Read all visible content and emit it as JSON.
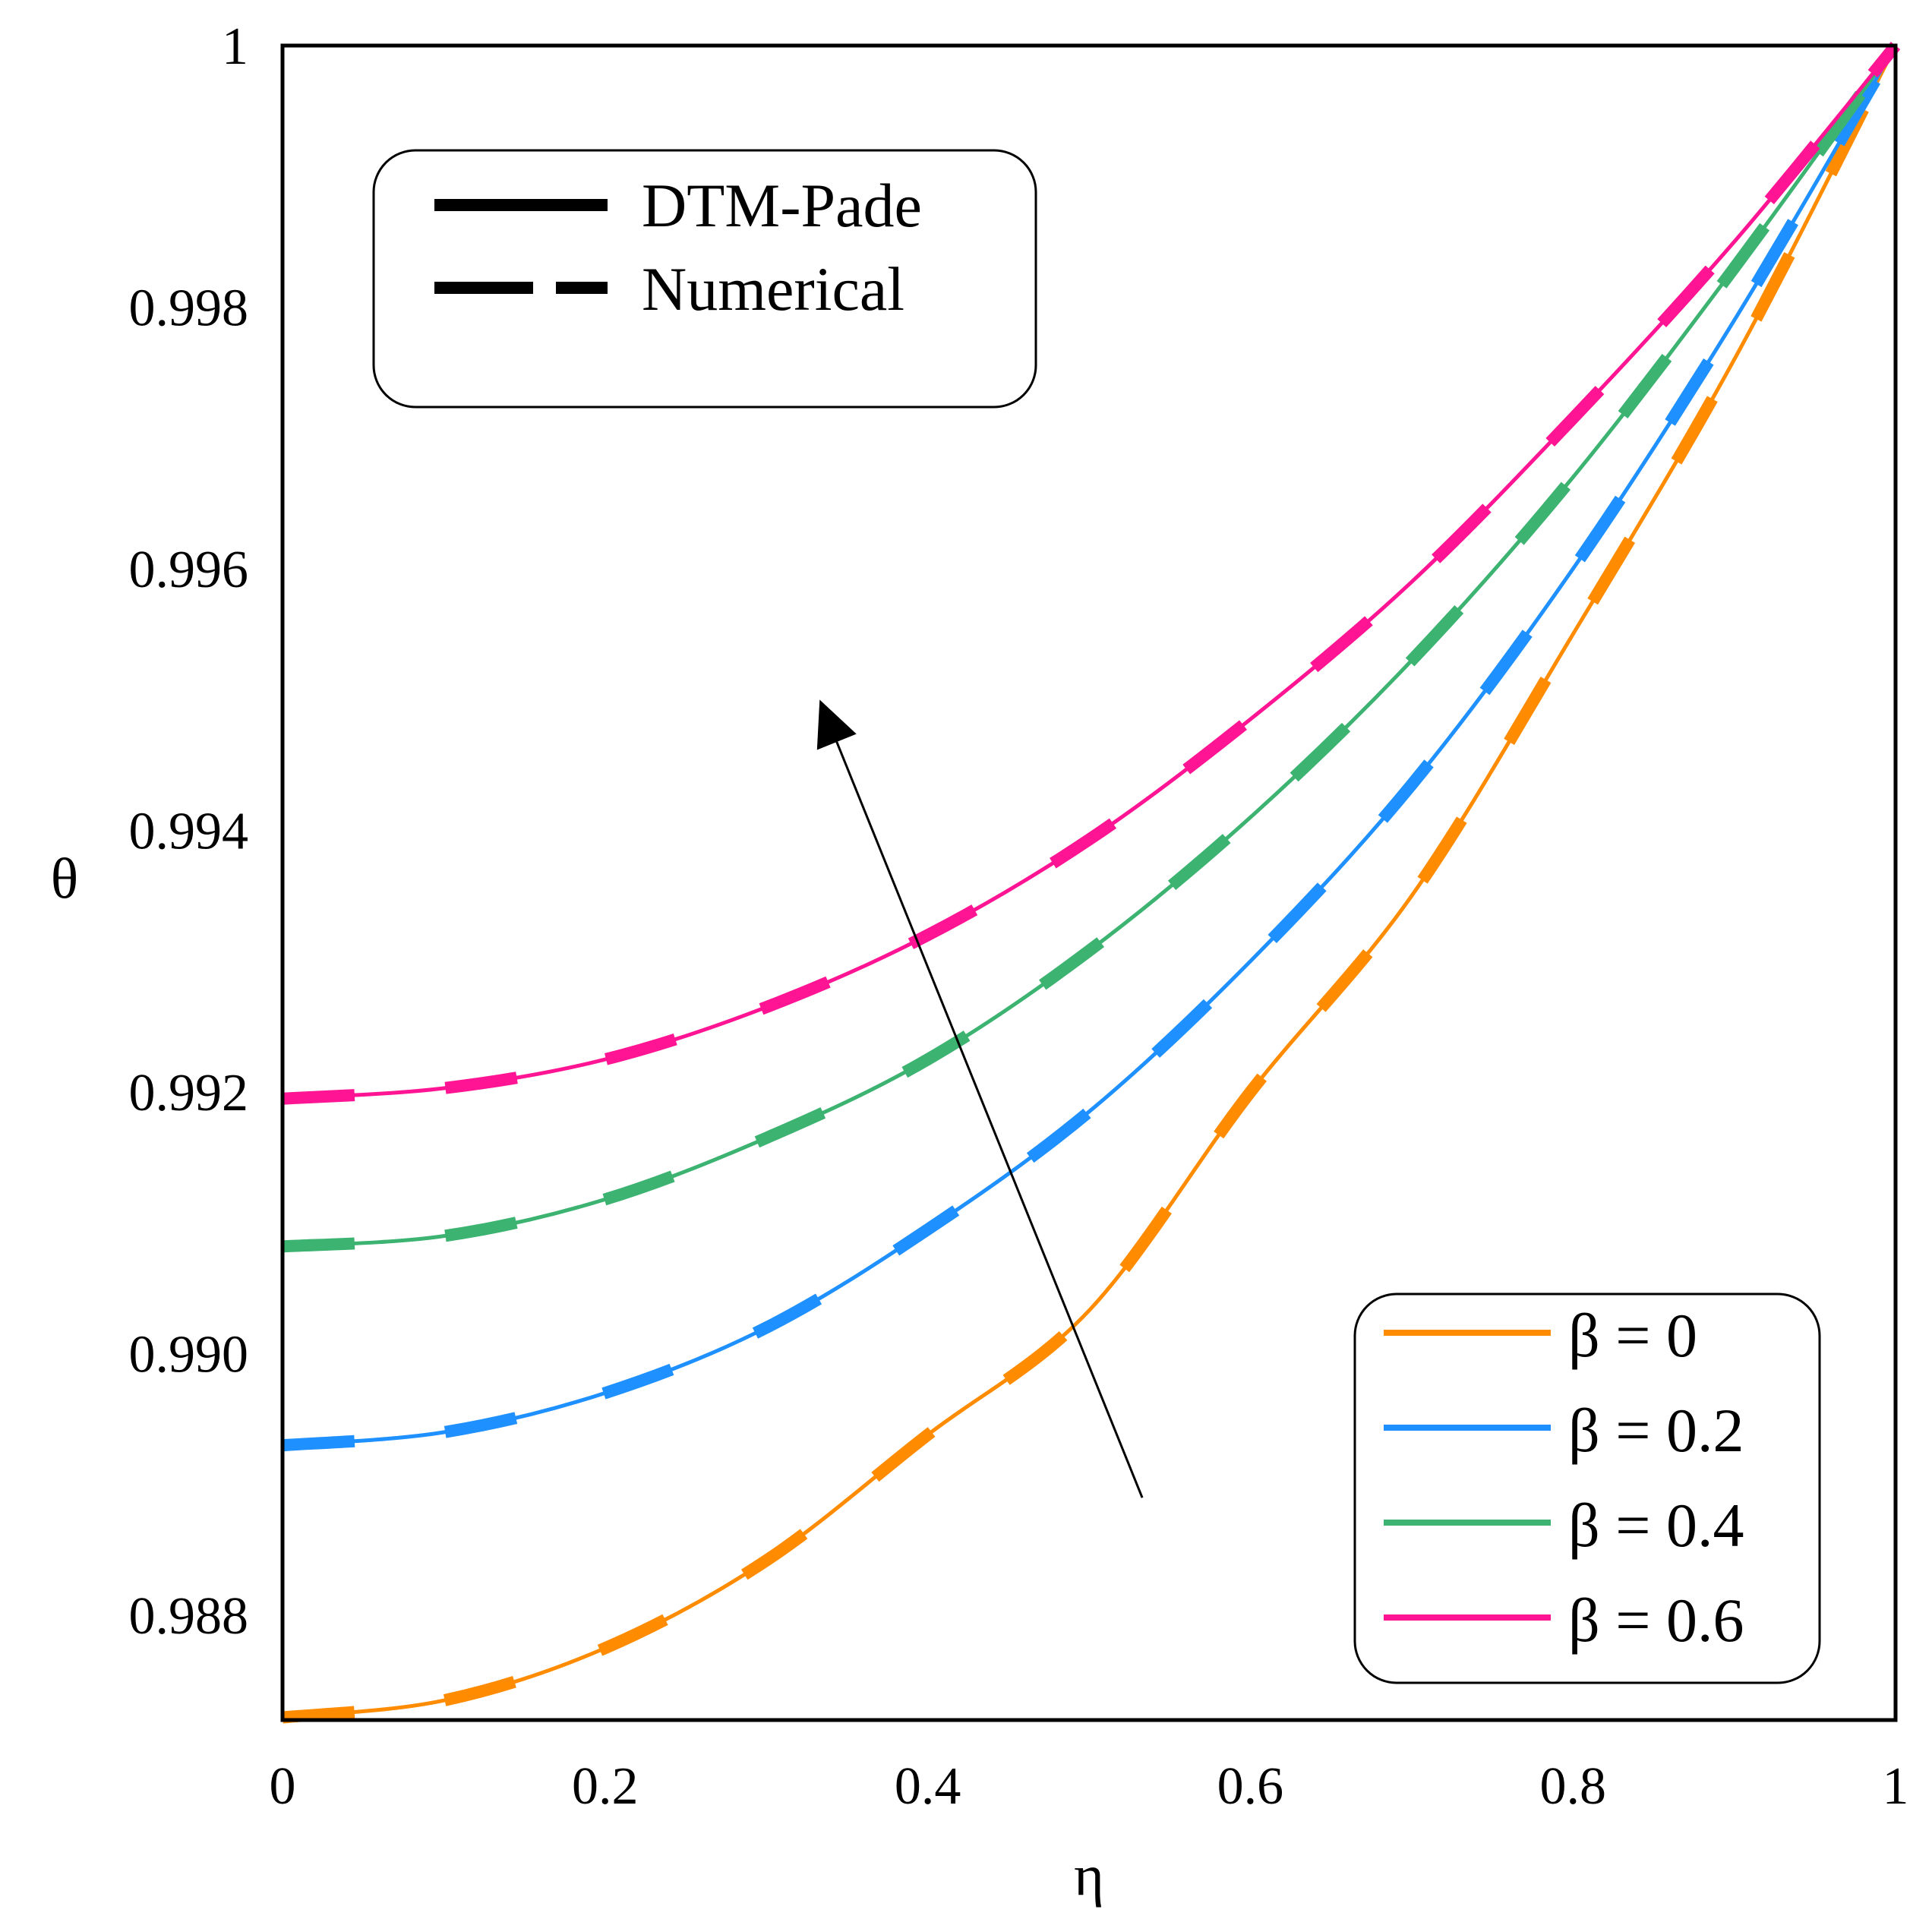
{
  "chart_data": {
    "type": "line",
    "title": "",
    "xlabel": "η",
    "ylabel": "θ",
    "xlim": [
      0,
      1
    ],
    "ylim": [
      0.9872,
      1.0
    ],
    "xticks": [
      0,
      0.2,
      0.4,
      0.6,
      0.8,
      1
    ],
    "xtick_labels": [
      "0",
      "0.2",
      "0.4",
      "0.6",
      "0.8",
      "1"
    ],
    "yticks": [
      0.988,
      0.99,
      0.992,
      0.994,
      0.996,
      0.998,
      1.0
    ],
    "ytick_labels": [
      "0.988",
      "0.990",
      "0.992",
      "0.994",
      "0.996",
      "0.998",
      "1"
    ],
    "grid": false,
    "style_legend": {
      "placement": "top-left",
      "entries": [
        {
          "label": "DTM-Pade",
          "style": "solid"
        },
        {
          "label": "Numerical",
          "style": "dashed"
        }
      ]
    },
    "series_legend": {
      "placement": "bottom-right"
    },
    "annotation": {
      "type": "arrow",
      "meaning": "increasing β",
      "from": [
        0.533,
        0.9889
      ],
      "to": [
        0.333,
        0.995
      ]
    },
    "series": [
      {
        "name": "β = 0",
        "color": "#FF8C00",
        "x": [
          0,
          0.1,
          0.2,
          0.3,
          0.4,
          0.5,
          0.6,
          0.7,
          0.8,
          0.9,
          1.0
        ],
        "values": [
          0.98722,
          0.98735,
          0.98775,
          0.98842,
          0.98938,
          0.99033,
          0.992,
          0.9935,
          0.9955,
          0.9976,
          1.0
        ]
      },
      {
        "name": "β = 0.2",
        "color": "#1E90FF",
        "x": [
          0,
          0.1,
          0.2,
          0.3,
          0.4,
          0.5,
          0.6,
          0.7,
          0.8,
          0.9,
          1.0
        ],
        "values": [
          0.9893,
          0.9894,
          0.9897,
          0.9902,
          0.99095,
          0.99185,
          0.993,
          0.99435,
          0.996,
          0.9979,
          1.0
        ]
      },
      {
        "name": "β = 0.4",
        "color": "#3CB371",
        "x": [
          0,
          0.1,
          0.2,
          0.3,
          0.4,
          0.5,
          0.6,
          0.7,
          0.8,
          0.9,
          1.0
        ],
        "values": [
          0.99082,
          0.9909,
          0.99118,
          0.99165,
          0.99225,
          0.99308,
          0.9941,
          0.9953,
          0.9967,
          0.9983,
          1.0
        ]
      },
      {
        "name": "β = 0.6",
        "color": "#FF1493",
        "x": [
          0,
          0.1,
          0.2,
          0.3,
          0.4,
          0.5,
          0.6,
          0.7,
          0.8,
          0.9,
          1.0
        ],
        "values": [
          0.99195,
          0.99203,
          0.99225,
          0.99265,
          0.9932,
          0.99393,
          0.99485,
          0.9959,
          0.99715,
          0.9985,
          1.0
        ]
      }
    ]
  }
}
